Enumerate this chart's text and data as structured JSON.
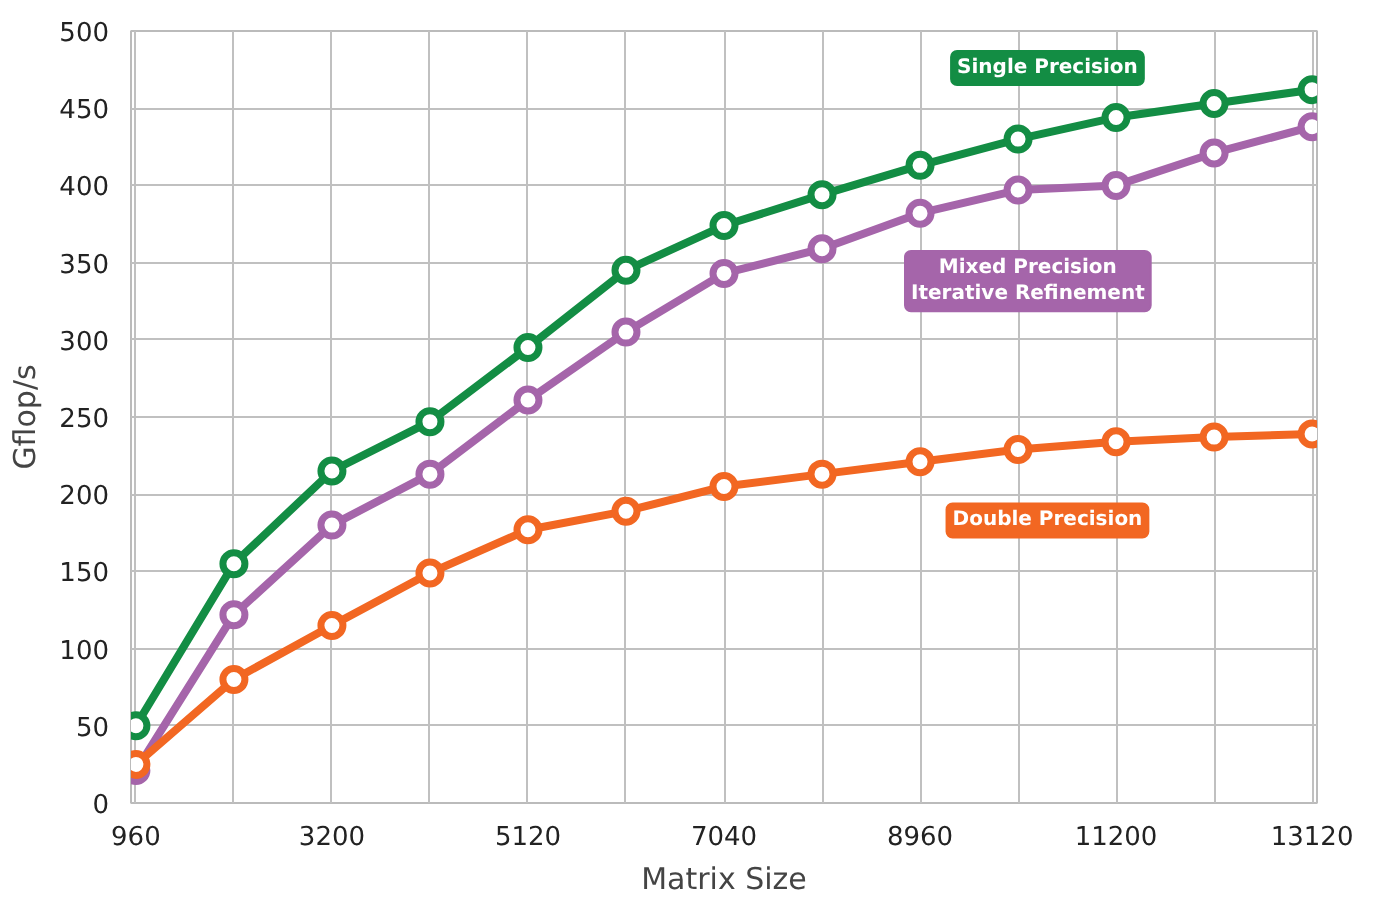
{
  "chart_data": {
    "type": "line",
    "xlabel": "Matrix Size",
    "ylabel": "Gflop/s",
    "categories": [
      "960",
      null,
      "3200",
      null,
      "5120",
      null,
      "7040",
      null,
      "8960",
      null,
      "11200",
      null,
      "13120"
    ],
    "ylim": [
      0,
      500
    ],
    "yticks": [
      0,
      50,
      100,
      150,
      200,
      250,
      300,
      350,
      400,
      450,
      500
    ],
    "grid": true,
    "marker": "circle",
    "line_style": "solid",
    "legend": false,
    "series": [
      {
        "name": "Single Precision",
        "color": "#138d44",
        "values": [
          50,
          155,
          215,
          247,
          295,
          345,
          374,
          394,
          413,
          430,
          444,
          453,
          462
        ]
      },
      {
        "name": "Mixed Precision\nIterative Refinement",
        "color": "#a565aa",
        "values": [
          21,
          122,
          180,
          213,
          261,
          305,
          343,
          359,
          382,
          397,
          400,
          421,
          438
        ]
      },
      {
        "name": "Double Precision",
        "color": "#f26722",
        "values": [
          25,
          80,
          115,
          149,
          177,
          189,
          205,
          213,
          221,
          229,
          234,
          237,
          239
        ]
      }
    ]
  }
}
